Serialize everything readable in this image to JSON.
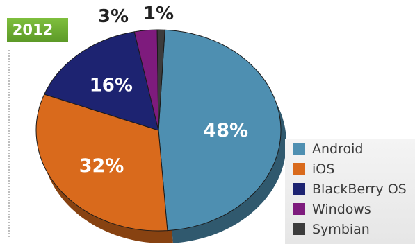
{
  "badge": {
    "year": "2012"
  },
  "chart_data": {
    "type": "pie",
    "categories": [
      "Android",
      "iOS",
      "BlackBerry OS",
      "Windows",
      "Symbian"
    ],
    "values": [
      48,
      32,
      16,
      3,
      1
    ],
    "value_labels": [
      "48%",
      "32%",
      "16%",
      "3%",
      "1%"
    ],
    "colors": [
      "#4e8fb1",
      "#d96a1c",
      "#1d2371",
      "#7e1b7d",
      "#3c3c3c"
    ],
    "legend_placement": "bottom-right"
  }
}
